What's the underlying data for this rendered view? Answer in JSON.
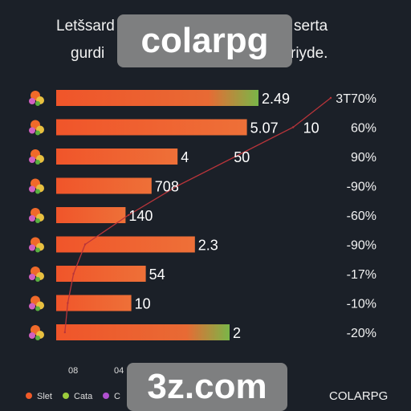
{
  "title": {
    "lines": [
      "Letšsard",
      "serta",
      "gurdi",
      "riyde."
    ]
  },
  "chart_data": {
    "type": "bar",
    "categories": [
      "",
      "",
      "",
      "",
      "",
      "",
      "",
      "",
      ""
    ],
    "values": [
      70,
      66,
      42,
      33,
      24,
      48,
      31,
      26,
      60
    ],
    "value_labels": [
      "2.49",
      "5.07",
      "4",
      "708",
      "140",
      "2.3",
      "54",
      "10",
      "2"
    ],
    "secondary_labels": [
      "",
      "10",
      "50",
      "",
      "",
      "",
      "",
      "",
      ""
    ],
    "line_series": {
      "values": [
        95,
        82,
        62,
        42,
        25,
        10,
        6,
        4,
        3
      ]
    },
    "right_labels": [
      "3T70%",
      "60%",
      "90%",
      "-90%",
      "-60%",
      "-90%",
      "-17%",
      "-10%",
      "-20%"
    ],
    "x_ticks": [
      "08",
      "04"
    ],
    "legend": [
      {
        "label": "Slet",
        "color": "#f05a28"
      },
      {
        "label": "Cata",
        "color": "#9ccc3c"
      },
      {
        "label": "C",
        "color": "#b050d0"
      }
    ],
    "xlim": [
      0,
      100
    ],
    "grid": false
  },
  "watermarks": {
    "top": "colarpg",
    "bottom": "3z.com"
  },
  "brand": "COLARPG",
  "colors": {
    "bar_start": "#f0552a",
    "bar_end_default": "#e8703a",
    "bar_end_green": "#7ab648",
    "line": "#b8343a",
    "background": "#1b2028"
  }
}
